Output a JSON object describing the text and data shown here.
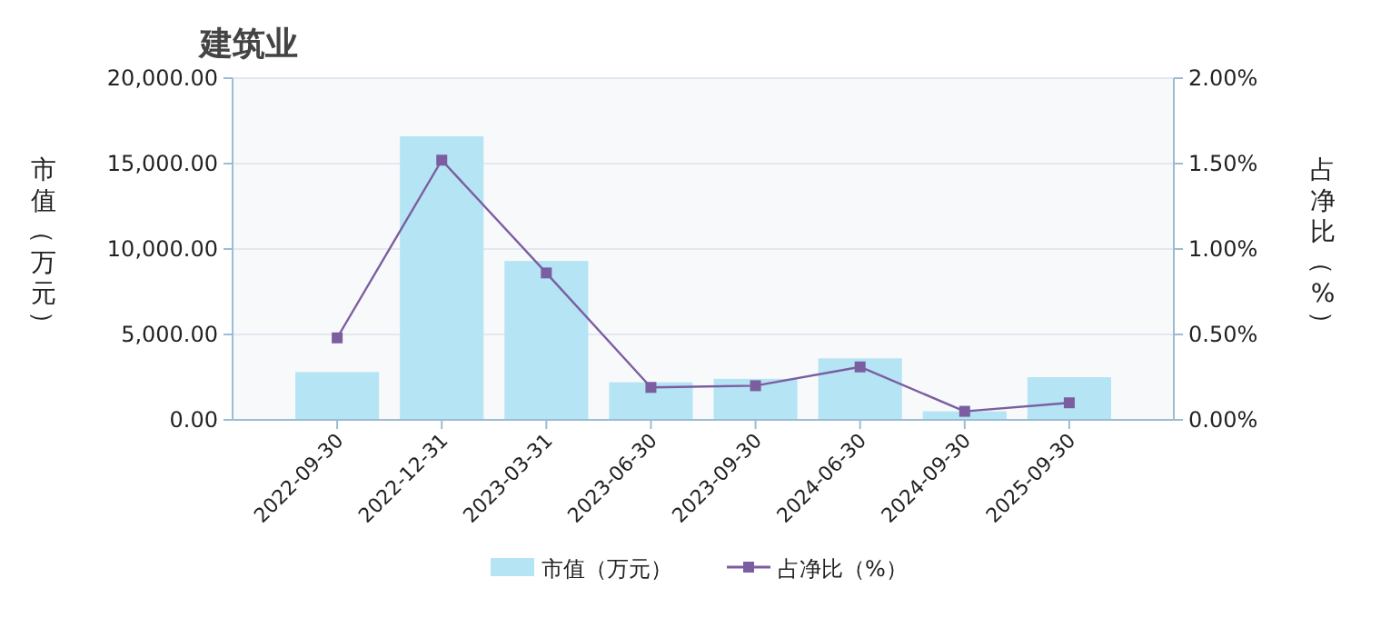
{
  "chart_data": {
    "type": "bar",
    "title": "建筑业",
    "ylabel": "市值（万元）",
    "y2label": "占净比（%）",
    "categories": [
      "2022-09-30",
      "2022-12-31",
      "2023-03-31",
      "2023-06-30",
      "2023-09-30",
      "2024-06-30",
      "2024-09-30",
      "2025-09-30"
    ],
    "series": [
      {
        "name": "市值（万元）",
        "color": "#b5e4f4",
        "values": [
          2800,
          16600,
          9300,
          2200,
          2400,
          3600,
          500,
          2500
        ]
      },
      {
        "name": "占净比（%）",
        "type": "line",
        "axis": "y2",
        "color": "#7b5ea0",
        "marker": "square",
        "values": [
          0.48,
          1.52,
          0.86,
          0.19,
          0.2,
          0.31,
          0.05,
          0.1
        ]
      }
    ],
    "ylim": [
      0,
      20000
    ],
    "yticks": [
      {
        "value": 0,
        "label": "0.00"
      },
      {
        "value": 5000,
        "label": "5,000.00"
      },
      {
        "value": 10000,
        "label": "10,000.00"
      },
      {
        "value": 15000,
        "label": "15,000.00"
      },
      {
        "value": 20000,
        "label": "20,000.00"
      }
    ],
    "y2lim": [
      0,
      2
    ],
    "y2ticks": [
      {
        "value": 0,
        "label": "0.00%"
      },
      {
        "value": 0.5,
        "label": "0.50%"
      },
      {
        "value": 1,
        "label": "1.00%"
      },
      {
        "value": 1.5,
        "label": "1.50%"
      },
      {
        "value": 2,
        "label": "2.00%"
      }
    ],
    "grid": "y",
    "legend": "bottom"
  }
}
